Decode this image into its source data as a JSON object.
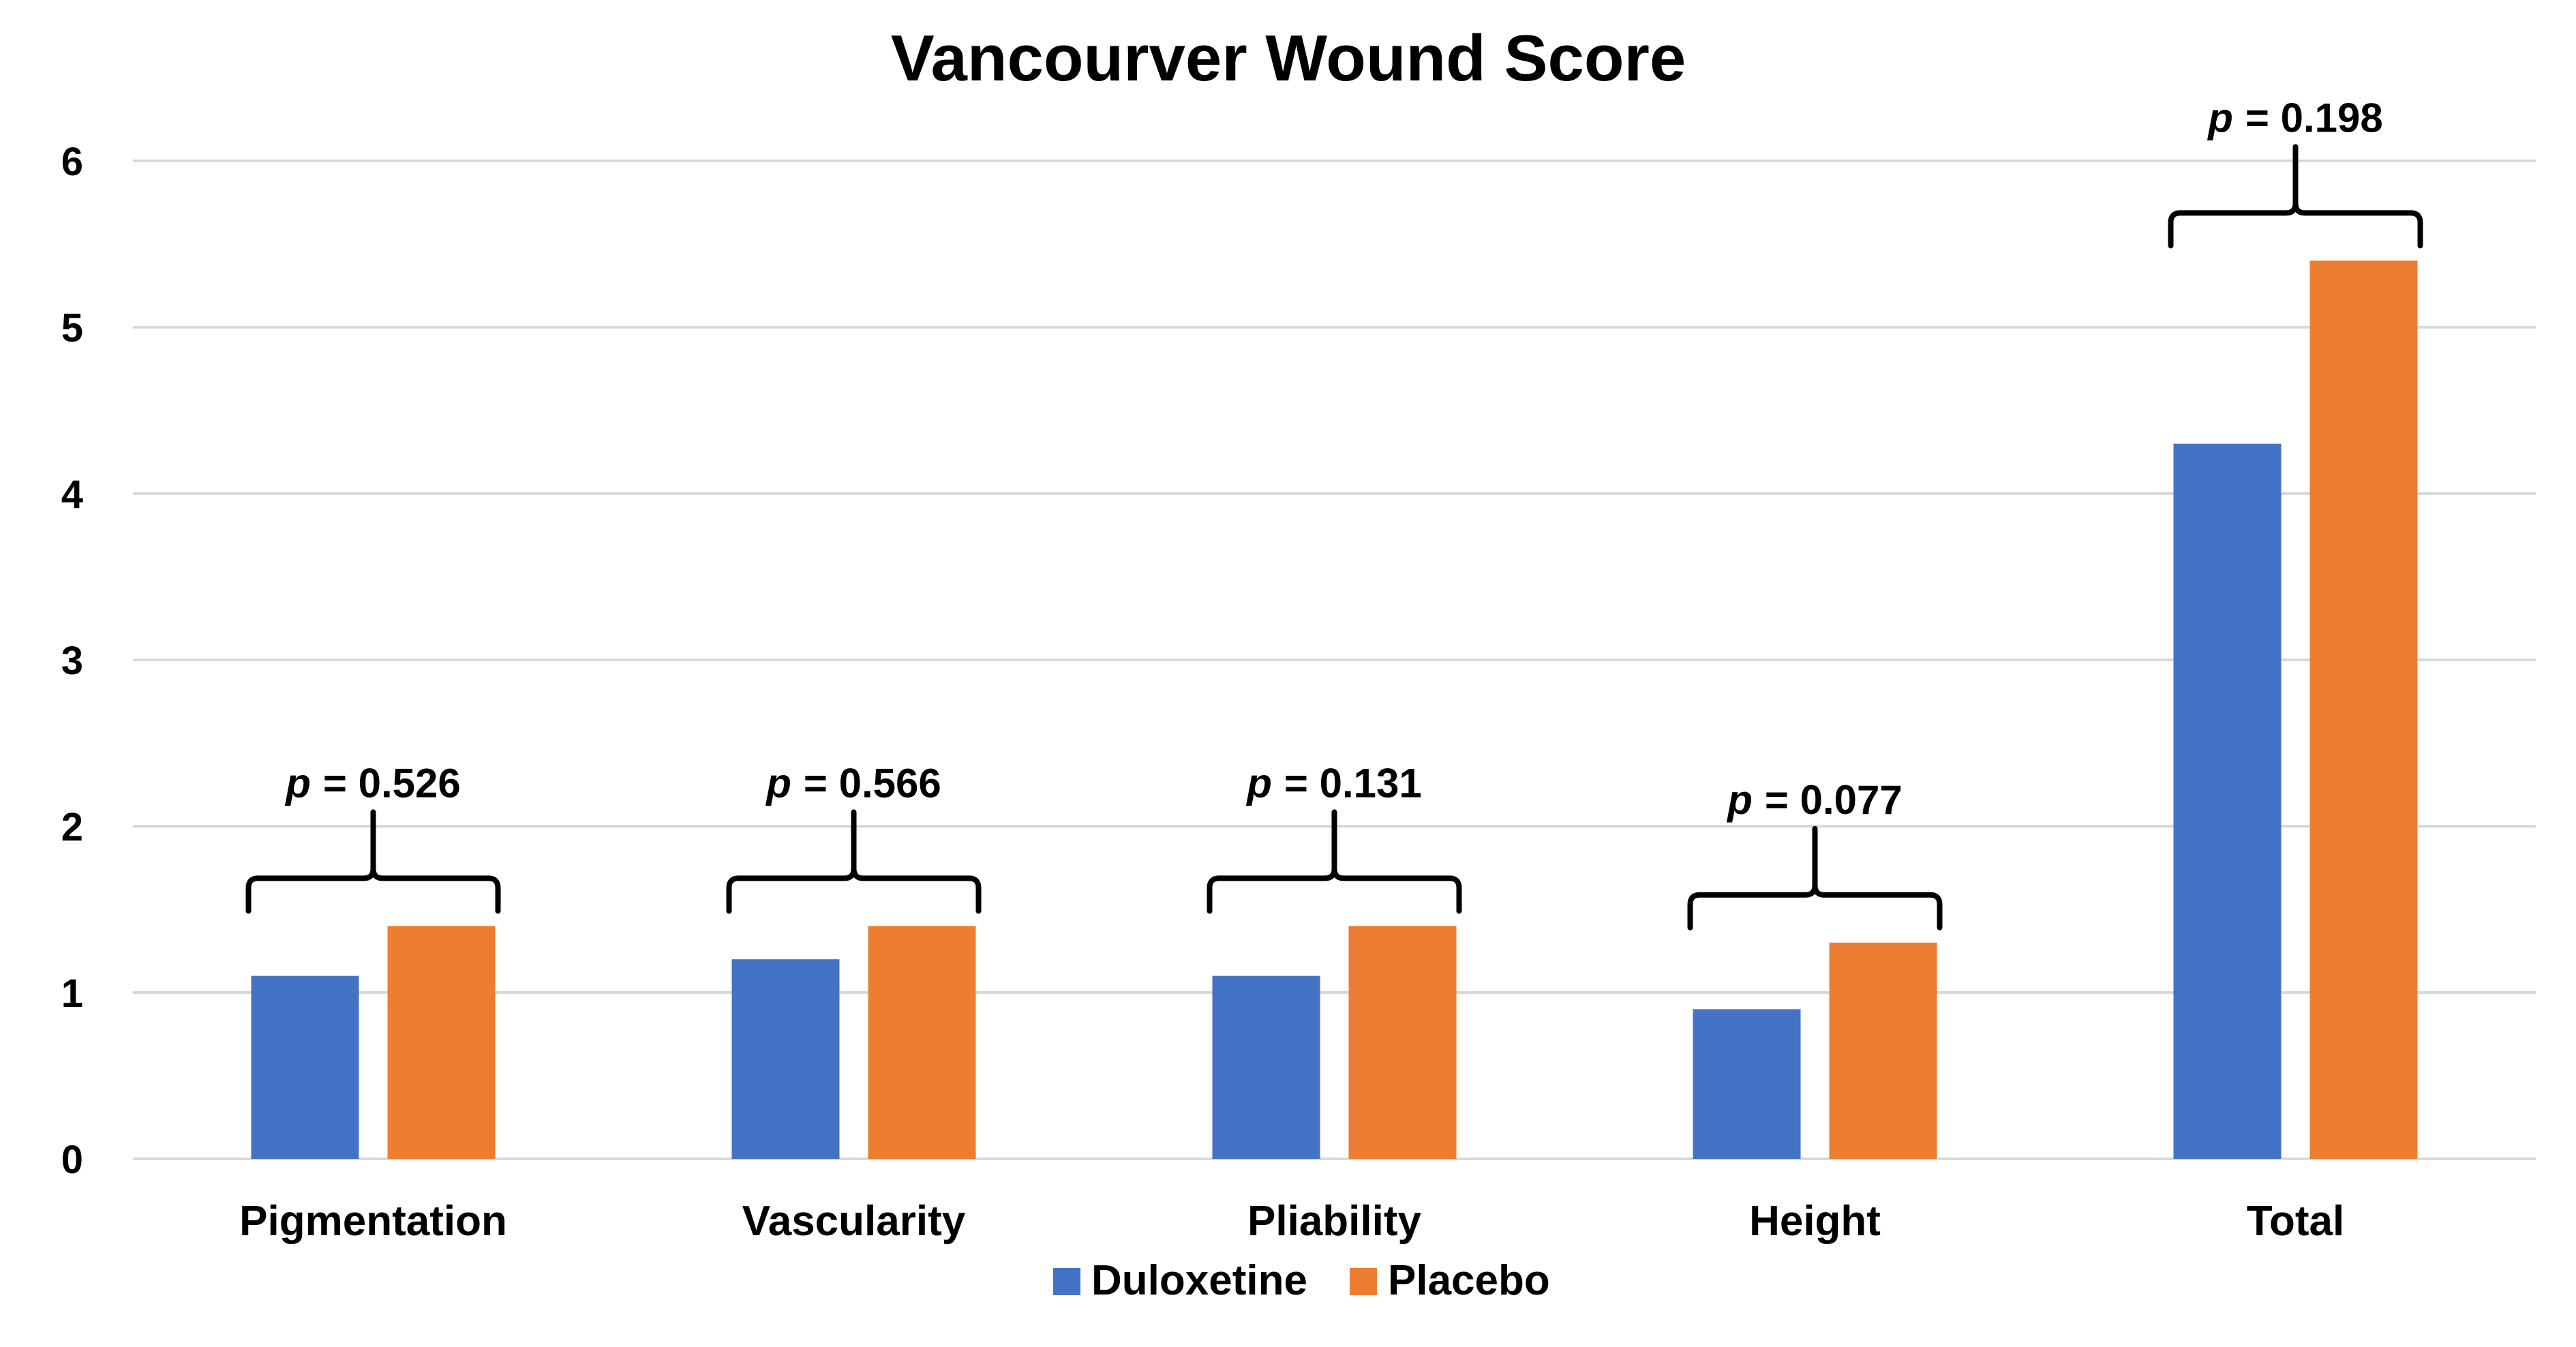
{
  "chart_data": {
    "type": "bar",
    "title": "Vancourver Wound Score",
    "xlabel": "",
    "ylabel": "",
    "categories": [
      "Pigmentation",
      "Vascularity",
      "Pliability",
      "Height",
      "Total"
    ],
    "series": [
      {
        "name": "Duloxetine",
        "color": "#4472C4",
        "values": [
          1.1,
          1.2,
          1.1,
          0.9,
          4.3
        ]
      },
      {
        "name": "Placebo",
        "color": "#ED7D31",
        "values": [
          1.4,
          1.4,
          1.4,
          1.3,
          5.4
        ]
      }
    ],
    "ylim": [
      0,
      6
    ],
    "yticks": [
      "0",
      "1",
      "2",
      "3",
      "4",
      "5",
      "6"
    ],
    "grid": true,
    "legend": "bottom",
    "annotations": [
      {
        "category": "Pigmentation",
        "p_symbol": "p",
        "text": "= 0.526"
      },
      {
        "category": "Vascularity",
        "p_symbol": "p",
        "text": "= 0.566"
      },
      {
        "category": "Pliability",
        "p_symbol": "p",
        "text": "= 0.131"
      },
      {
        "category": "Height",
        "p_symbol": "p",
        "text": "= 0.077"
      },
      {
        "category": "Total",
        "p_symbol": "p",
        "text": "= 0.198"
      }
    ]
  }
}
